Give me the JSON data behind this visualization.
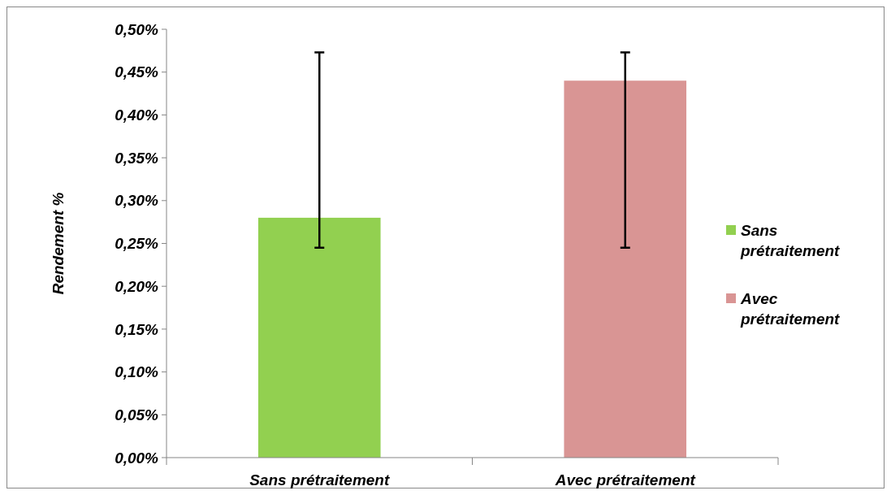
{
  "chart_data": {
    "type": "bar",
    "ylabel": "Rendement %",
    "categories": [
      "Sans prétraitement",
      "Avec prétraitement"
    ],
    "series": [
      {
        "name": "Sans prétraitement",
        "color": "#92d050",
        "values": [
          0.28,
          null
        ],
        "errors": [
          [
            0.245,
            0.473
          ],
          null
        ]
      },
      {
        "name": "Avec prétraitement",
        "color": "#d99594",
        "values": [
          null,
          0.44
        ],
        "errors": [
          null,
          [
            0.245,
            0.473
          ]
        ]
      }
    ],
    "ylim": [
      0,
      0.5
    ],
    "yticks": [
      {
        "value": 0,
        "label": "0,00%"
      },
      {
        "value": 0.05,
        "label": "0,05%"
      },
      {
        "value": 0.1,
        "label": "0,10%"
      },
      {
        "value": 0.15,
        "label": "0,15%"
      },
      {
        "value": 0.2,
        "label": "0,20%"
      },
      {
        "value": 0.25,
        "label": "0,25%"
      },
      {
        "value": 0.3,
        "label": "0,30%"
      },
      {
        "value": 0.35,
        "label": "0,35%"
      },
      {
        "value": 0.4,
        "label": "0,40%"
      },
      {
        "value": 0.45,
        "label": "0,45%"
      },
      {
        "value": 0.5,
        "label": "0,50%"
      }
    ],
    "legend": "right"
  }
}
